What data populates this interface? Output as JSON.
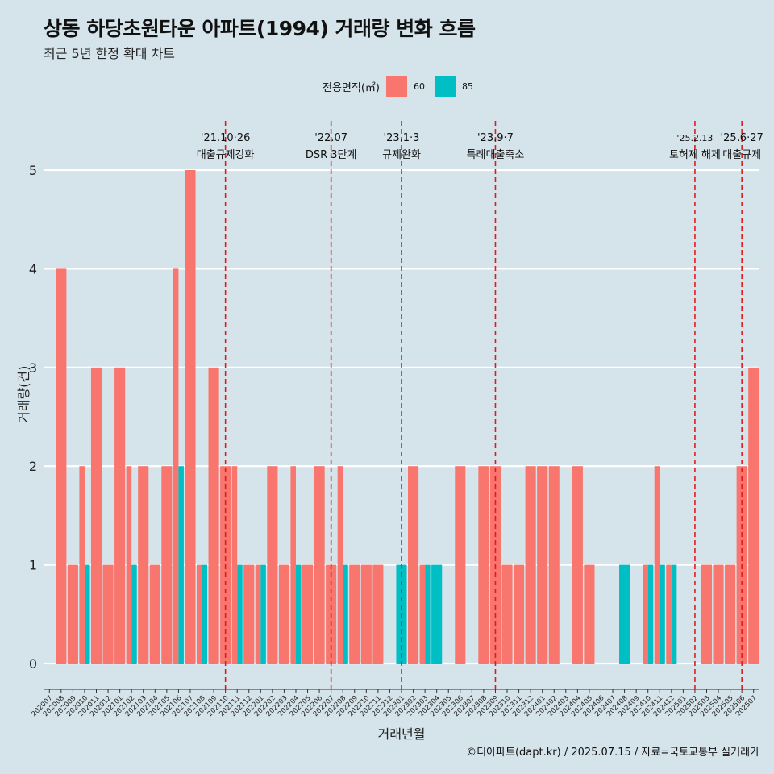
{
  "header": {
    "title": "상동 하당초원타운 아파트(1994) 거래량 변화 흐름",
    "subtitle": "최근 5년 한정 확대 차트"
  },
  "legend": {
    "title": "전용면적(㎡)",
    "items": [
      {
        "label": "60",
        "color": "#f8766d"
      },
      {
        "label": "85",
        "color": "#00bfc4"
      }
    ]
  },
  "caption": "©디아파트(dapt.kr) / 2025.07.15 / 자료=국토교통부 실거래가",
  "chart_data": {
    "type": "bar",
    "xlabel": "거래년월",
    "ylabel": "거래량(건)",
    "ylim": [
      0,
      5
    ],
    "yticks": [
      0,
      1,
      2,
      3,
      4,
      5
    ],
    "grid": true,
    "legend_position": "top",
    "categories": [
      "202007",
      "202008",
      "202009",
      "202010",
      "202011",
      "202012",
      "202101",
      "202102",
      "202103",
      "202104",
      "202105",
      "202106",
      "202107",
      "202108",
      "202109",
      "202110",
      "202111",
      "202112",
      "202201",
      "202202",
      "202203",
      "202204",
      "202205",
      "202206",
      "202207",
      "202208",
      "202209",
      "202210",
      "202211",
      "202212",
      "202301",
      "202302",
      "202303",
      "202304",
      "202305",
      "202306",
      "202307",
      "202308",
      "202309",
      "202310",
      "202311",
      "202312",
      "202401",
      "202402",
      "202403",
      "202404",
      "202405",
      "202406",
      "202407",
      "202408",
      "202409",
      "202410",
      "202411",
      "202412",
      "202501",
      "202502",
      "202503",
      "202504",
      "202505",
      "202506",
      "202507"
    ],
    "series": [
      {
        "name": "60",
        "color": "#f8766d",
        "values": [
          0,
          4,
          1,
          2,
          3,
          1,
          3,
          2,
          2,
          1,
          2,
          4,
          5,
          1,
          3,
          2,
          2,
          1,
          1,
          2,
          1,
          2,
          1,
          2,
          1,
          2,
          1,
          1,
          1,
          0,
          0,
          2,
          1,
          0,
          0,
          2,
          0,
          2,
          2,
          1,
          1,
          2,
          2,
          2,
          0,
          2,
          1,
          0,
          0,
          0,
          0,
          1,
          2,
          1,
          0,
          0,
          1,
          1,
          1,
          2,
          3
        ]
      },
      {
        "name": "85",
        "color": "#00bfc4",
        "values": [
          0,
          0,
          0,
          1,
          0,
          0,
          0,
          1,
          0,
          0,
          0,
          2,
          0,
          1,
          0,
          0,
          1,
          0,
          1,
          0,
          0,
          1,
          0,
          0,
          0,
          1,
          0,
          0,
          0,
          0,
          1,
          0,
          1,
          1,
          0,
          0,
          0,
          0,
          0,
          0,
          0,
          0,
          0,
          0,
          0,
          0,
          0,
          0,
          0,
          1,
          0,
          1,
          1,
          1,
          0,
          0,
          0,
          0,
          0,
          0,
          0
        ]
      }
    ],
    "annotations": [
      {
        "label1": "'21.10·26",
        "label2": "대출규제강화",
        "x": "202110"
      },
      {
        "label1": "'22.07",
        "label2": "DSR 3단계",
        "x": "202207"
      },
      {
        "label1": "'23.1·3",
        "label2": "규제완화",
        "x": "202301"
      },
      {
        "label1": "'23.9·7",
        "label2": "특례대출축소",
        "x": "202309"
      },
      {
        "label1": "'25.2.13",
        "label2": "토허제 해제",
        "x": "202502"
      },
      {
        "label1": "'25.6·27",
        "label2": "대출규제",
        "x": "202506"
      }
    ]
  }
}
